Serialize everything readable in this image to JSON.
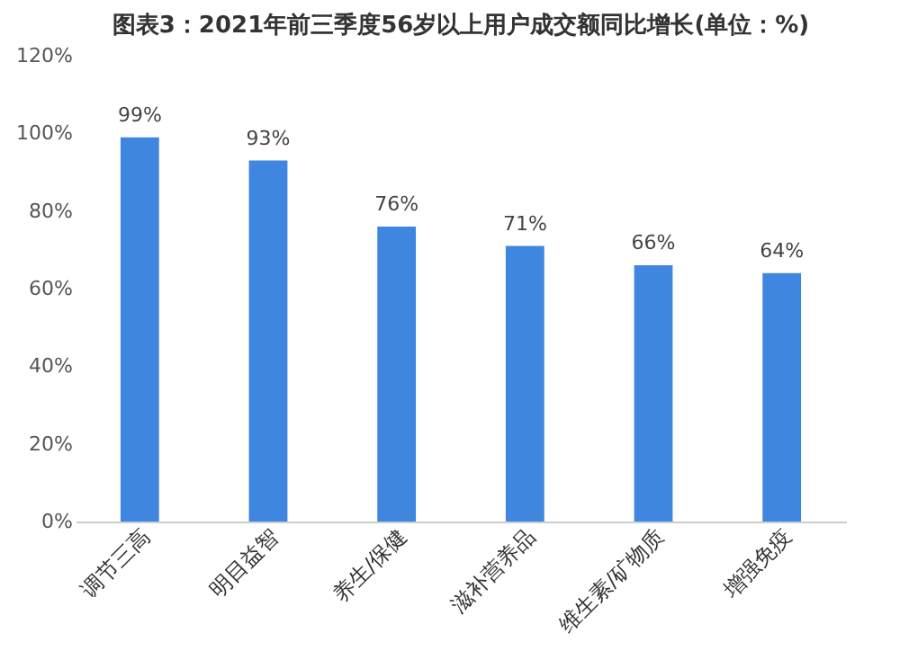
{
  "chart_data": {
    "type": "bar",
    "title": "图表3：2021年前三季度56岁以上用户成交额同比增长(单位：%)",
    "categories": [
      "调节三高",
      "明目益智",
      "养生/保健",
      "滋补营养品",
      "维生素/矿物质",
      "增强免疫"
    ],
    "values": [
      99,
      93,
      76,
      71,
      66,
      64
    ],
    "value_labels": [
      "99%",
      "93%",
      "76%",
      "71%",
      "66%",
      "64%"
    ],
    "color": "#3f86e0",
    "ylim": [
      0,
      120
    ],
    "yticks": [
      {
        "value": 0,
        "label": "0%"
      },
      {
        "value": 20,
        "label": "20%"
      },
      {
        "value": 40,
        "label": "40%"
      },
      {
        "value": 60,
        "label": "60%"
      },
      {
        "value": 80,
        "label": "80%"
      },
      {
        "value": 100,
        "label": "100%"
      },
      {
        "value": 120,
        "label": "120%"
      }
    ],
    "grid": false
  }
}
